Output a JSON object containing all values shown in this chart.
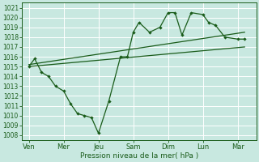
{
  "bg_color": "#c8e8e0",
  "grid_color": "#ffffff",
  "line_color": "#1a5c1a",
  "xlabel": "Pression niveau de la mer( hPa )",
  "xtick_labels": [
    "Ven",
    "Mer",
    "Jeu",
    "Sam",
    "Dim",
    "Lun",
    "Mar"
  ],
  "xtick_positions": [
    0,
    1.5,
    3.0,
    4.5,
    6.0,
    7.5,
    9.0
  ],
  "ylim": [
    1007.5,
    1021.5
  ],
  "yticks": [
    1008,
    1009,
    1010,
    1011,
    1012,
    1013,
    1014,
    1015,
    1016,
    1017,
    1018,
    1019,
    1020,
    1021
  ],
  "zigzag_x": [
    0.0,
    0.25,
    0.55,
    0.85,
    1.15,
    1.5,
    1.8,
    2.1,
    2.4,
    2.7,
    3.0,
    3.45,
    3.95,
    4.25,
    4.5,
    4.75,
    5.2,
    5.65,
    6.0,
    6.3,
    6.6,
    7.0,
    7.5,
    7.75,
    8.05,
    8.45,
    9.0,
    9.3
  ],
  "zigzag_y": [
    1015.0,
    1015.8,
    1014.4,
    1014.0,
    1013.0,
    1012.5,
    1011.2,
    1010.2,
    1010.0,
    1009.8,
    1008.2,
    1011.5,
    1016.0,
    1016.0,
    1018.5,
    1019.5,
    1018.5,
    1019.0,
    1020.5,
    1020.5,
    1018.2,
    1020.5,
    1020.3,
    1019.5,
    1019.2,
    1018.0,
    1017.8,
    1017.8
  ],
  "trend1_x": [
    0.0,
    9.3
  ],
  "trend1_y": [
    1015.2,
    1018.5
  ],
  "trend2_x": [
    0.0,
    9.3
  ],
  "trend2_y": [
    1015.0,
    1017.0
  ],
  "xlim": [
    -0.3,
    9.8
  ]
}
